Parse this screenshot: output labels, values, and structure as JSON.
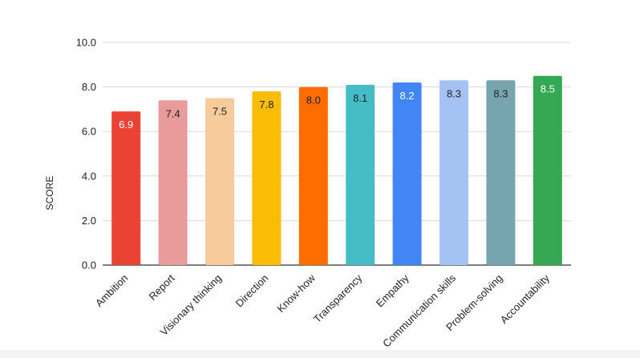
{
  "chart_data": {
    "type": "bar",
    "title": "",
    "xlabel": "",
    "ylabel": "SCORE",
    "ylim": [
      0,
      10
    ],
    "yticks": [
      "0.0",
      "2.0",
      "4.0",
      "6.0",
      "8.0",
      "10.0"
    ],
    "ytick_values": [
      0,
      2,
      4,
      6,
      8,
      10
    ],
    "grid": true,
    "legend": "none",
    "categories": [
      "Ambition",
      "Report",
      "Visionary thinking",
      "Direction",
      "Know-how",
      "Transparency",
      "Empathy",
      "Communication skills",
      "Problem-solving",
      "Accountability"
    ],
    "values": [
      6.9,
      7.4,
      7.5,
      7.8,
      8.0,
      8.1,
      8.2,
      8.3,
      8.3,
      8.5
    ],
    "value_labels": [
      "6.9",
      "7.4",
      "7.5",
      "7.8",
      "8.0",
      "8.1",
      "8.2",
      "8.3",
      "8.3",
      "8.5"
    ],
    "colors": [
      "#ea4335",
      "#e99a9a",
      "#f8cb9c",
      "#fbbc04",
      "#ff6d01",
      "#46bdc6",
      "#4285f4",
      "#a4c2f4",
      "#76a5af",
      "#34a853"
    ],
    "label_colors": [
      "#ffffff",
      "#222222",
      "#222222",
      "#222222",
      "#222222",
      "#222222",
      "#ffffff",
      "#222222",
      "#222222",
      "#ffffff"
    ]
  }
}
